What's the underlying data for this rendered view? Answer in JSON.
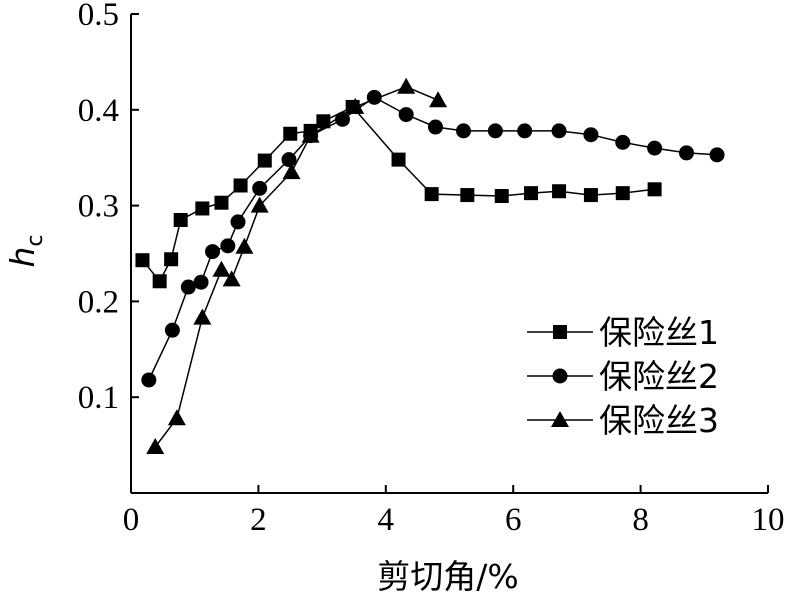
{
  "chart_data": {
    "type": "line",
    "xlabel": "剪切角/%",
    "ylabel": "h",
    "ylabel_sub": "c",
    "xlim": [
      0,
      10
    ],
    "ylim": [
      0.0,
      0.5
    ],
    "xticks": [
      0,
      2,
      4,
      6,
      8,
      10
    ],
    "yticks": [
      0.1,
      0.2,
      0.3,
      0.4,
      0.5
    ],
    "xtick_labels": [
      "0",
      "2",
      "4",
      "6",
      "8",
      "10"
    ],
    "ytick_labels": [
      "0.1",
      "0.2",
      "0.3",
      "0.4",
      "0.5"
    ],
    "grid": false,
    "legend_position": "center-right",
    "series": [
      {
        "name": "保险丝1",
        "marker": "square",
        "x": [
          0.18,
          0.45,
          0.63,
          0.78,
          1.12,
          1.42,
          1.72,
          2.1,
          2.5,
          2.82,
          3.02,
          3.48,
          4.2,
          4.72,
          5.28,
          5.82,
          6.28,
          6.72,
          7.22,
          7.72,
          8.22
        ],
        "y": [
          0.243,
          0.221,
          0.244,
          0.285,
          0.297,
          0.303,
          0.321,
          0.347,
          0.375,
          0.378,
          0.388,
          0.403,
          0.348,
          0.312,
          0.311,
          0.31,
          0.313,
          0.315,
          0.311,
          0.313,
          0.317
        ]
      },
      {
        "name": "保险丝2",
        "marker": "circle",
        "x": [
          0.28,
          0.65,
          0.9,
          1.1,
          1.28,
          1.52,
          1.68,
          2.02,
          2.48,
          2.82,
          3.32,
          3.82,
          4.32,
          4.78,
          5.22,
          5.72,
          6.18,
          6.72,
          7.22,
          7.72,
          8.22,
          8.72,
          9.2
        ],
        "y": [
          0.118,
          0.17,
          0.215,
          0.22,
          0.252,
          0.258,
          0.283,
          0.318,
          0.348,
          0.373,
          0.39,
          0.413,
          0.395,
          0.382,
          0.378,
          0.378,
          0.378,
          0.378,
          0.374,
          0.366,
          0.36,
          0.355,
          0.353
        ]
      },
      {
        "name": "保险丝3",
        "marker": "triangle",
        "x": [
          0.38,
          0.72,
          1.12,
          1.42,
          1.58,
          1.78,
          2.02,
          2.52,
          2.82,
          3.52,
          4.32,
          4.82
        ],
        "y": [
          0.048,
          0.078,
          0.183,
          0.233,
          0.223,
          0.257,
          0.3,
          0.335,
          0.373,
          0.403,
          0.424,
          0.41
        ]
      }
    ]
  }
}
